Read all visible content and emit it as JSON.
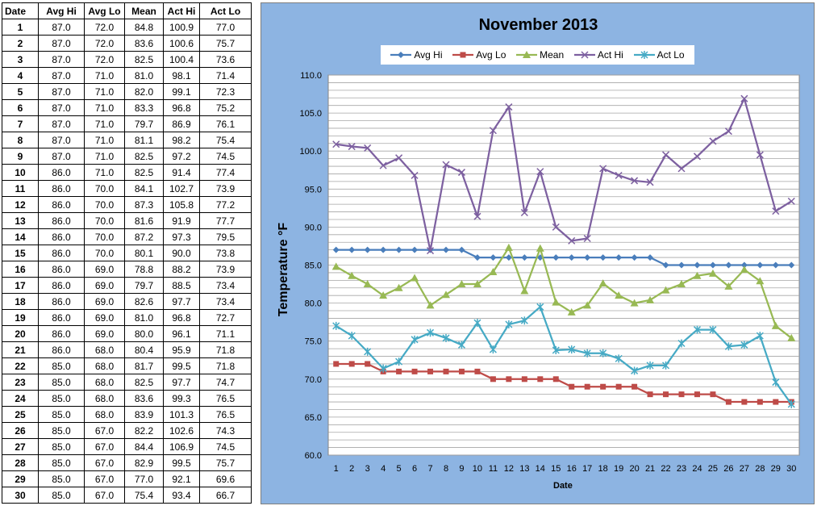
{
  "table": {
    "headers": [
      "Date",
      "Avg Hi",
      "Avg Lo",
      "Mean",
      "Act Hi",
      "Act Lo"
    ],
    "rows": [
      [
        "1",
        "87.0",
        "72.0",
        "84.8",
        "100.9",
        "77.0"
      ],
      [
        "2",
        "87.0",
        "72.0",
        "83.6",
        "100.6",
        "75.7"
      ],
      [
        "3",
        "87.0",
        "72.0",
        "82.5",
        "100.4",
        "73.6"
      ],
      [
        "4",
        "87.0",
        "71.0",
        "81.0",
        "98.1",
        "71.4"
      ],
      [
        "5",
        "87.0",
        "71.0",
        "82.0",
        "99.1",
        "72.3"
      ],
      [
        "6",
        "87.0",
        "71.0",
        "83.3",
        "96.8",
        "75.2"
      ],
      [
        "7",
        "87.0",
        "71.0",
        "79.7",
        "86.9",
        "76.1"
      ],
      [
        "8",
        "87.0",
        "71.0",
        "81.1",
        "98.2",
        "75.4"
      ],
      [
        "9",
        "87.0",
        "71.0",
        "82.5",
        "97.2",
        "74.5"
      ],
      [
        "10",
        "86.0",
        "71.0",
        "82.5",
        "91.4",
        "77.4"
      ],
      [
        "11",
        "86.0",
        "70.0",
        "84.1",
        "102.7",
        "73.9"
      ],
      [
        "12",
        "86.0",
        "70.0",
        "87.3",
        "105.8",
        "77.2"
      ],
      [
        "13",
        "86.0",
        "70.0",
        "81.6",
        "91.9",
        "77.7"
      ],
      [
        "14",
        "86.0",
        "70.0",
        "87.2",
        "97.3",
        "79.5"
      ],
      [
        "15",
        "86.0",
        "70.0",
        "80.1",
        "90.0",
        "73.8"
      ],
      [
        "16",
        "86.0",
        "69.0",
        "78.8",
        "88.2",
        "73.9"
      ],
      [
        "17",
        "86.0",
        "69.0",
        "79.7",
        "88.5",
        "73.4"
      ],
      [
        "18",
        "86.0",
        "69.0",
        "82.6",
        "97.7",
        "73.4"
      ],
      [
        "19",
        "86.0",
        "69.0",
        "81.0",
        "96.8",
        "72.7"
      ],
      [
        "20",
        "86.0",
        "69.0",
        "80.0",
        "96.1",
        "71.1"
      ],
      [
        "21",
        "86.0",
        "68.0",
        "80.4",
        "95.9",
        "71.8"
      ],
      [
        "22",
        "85.0",
        "68.0",
        "81.7",
        "99.5",
        "71.8"
      ],
      [
        "23",
        "85.0",
        "68.0",
        "82.5",
        "97.7",
        "74.7"
      ],
      [
        "24",
        "85.0",
        "68.0",
        "83.6",
        "99.3",
        "76.5"
      ],
      [
        "25",
        "85.0",
        "68.0",
        "83.9",
        "101.3",
        "76.5"
      ],
      [
        "26",
        "85.0",
        "67.0",
        "82.2",
        "102.6",
        "74.3"
      ],
      [
        "27",
        "85.0",
        "67.0",
        "84.4",
        "106.9",
        "74.5"
      ],
      [
        "28",
        "85.0",
        "67.0",
        "82.9",
        "99.5",
        "75.7"
      ],
      [
        "29",
        "85.0",
        "67.0",
        "77.0",
        "92.1",
        "69.6"
      ],
      [
        "30",
        "85.0",
        "67.0",
        "75.4",
        "93.4",
        "66.7"
      ]
    ]
  },
  "chart_data": {
    "type": "line",
    "title": "November 2013",
    "xlabel": "Date",
    "ylabel": "Temperature °F",
    "x": [
      1,
      2,
      3,
      4,
      5,
      6,
      7,
      8,
      9,
      10,
      11,
      12,
      13,
      14,
      15,
      16,
      17,
      18,
      19,
      20,
      21,
      22,
      23,
      24,
      25,
      26,
      27,
      28,
      29,
      30
    ],
    "ylim": [
      60,
      110
    ],
    "y_ticks": [
      "60.0",
      "65.0",
      "70.0",
      "75.0",
      "80.0",
      "85.0",
      "90.0",
      "95.0",
      "100.0",
      "105.0",
      "110.0"
    ],
    "grid": true,
    "legend_position": "top",
    "series": [
      {
        "name": "Avg Hi",
        "color": "#4a7ebb",
        "marker": "diamond",
        "values": [
          87,
          87,
          87,
          87,
          87,
          87,
          87,
          87,
          87,
          86,
          86,
          86,
          86,
          86,
          86,
          86,
          86,
          86,
          86,
          86,
          86,
          85,
          85,
          85,
          85,
          85,
          85,
          85,
          85,
          85
        ]
      },
      {
        "name": "Avg Lo",
        "color": "#be4b48",
        "marker": "square",
        "values": [
          72,
          72,
          72,
          71,
          71,
          71,
          71,
          71,
          71,
          71,
          70,
          70,
          70,
          70,
          70,
          69,
          69,
          69,
          69,
          69,
          68,
          68,
          68,
          68,
          68,
          67,
          67,
          67,
          67,
          67
        ]
      },
      {
        "name": "Mean",
        "color": "#98b954",
        "marker": "triangle",
        "values": [
          84.8,
          83.6,
          82.5,
          81.0,
          82.0,
          83.3,
          79.7,
          81.1,
          82.5,
          82.5,
          84.1,
          87.3,
          81.6,
          87.2,
          80.1,
          78.8,
          79.7,
          82.6,
          81.0,
          80.0,
          80.4,
          81.7,
          82.5,
          83.6,
          83.9,
          82.2,
          84.4,
          82.9,
          77.0,
          75.4
        ]
      },
      {
        "name": "Act Hi",
        "color": "#7d60a0",
        "marker": "x",
        "values": [
          100.9,
          100.6,
          100.4,
          98.1,
          99.1,
          96.8,
          86.9,
          98.2,
          97.2,
          91.4,
          102.7,
          105.8,
          91.9,
          97.3,
          90.0,
          88.2,
          88.5,
          97.7,
          96.8,
          96.1,
          95.9,
          99.5,
          97.7,
          99.3,
          101.3,
          102.6,
          106.9,
          99.5,
          92.1,
          93.4
        ]
      },
      {
        "name": "Act Lo",
        "color": "#46aac5",
        "marker": "star",
        "values": [
          77.0,
          75.7,
          73.6,
          71.4,
          72.3,
          75.2,
          76.1,
          75.4,
          74.5,
          77.4,
          73.9,
          77.2,
          77.7,
          79.5,
          73.8,
          73.9,
          73.4,
          73.4,
          72.7,
          71.1,
          71.8,
          71.8,
          74.7,
          76.5,
          76.5,
          74.3,
          74.5,
          75.7,
          69.6,
          66.7
        ]
      }
    ]
  }
}
